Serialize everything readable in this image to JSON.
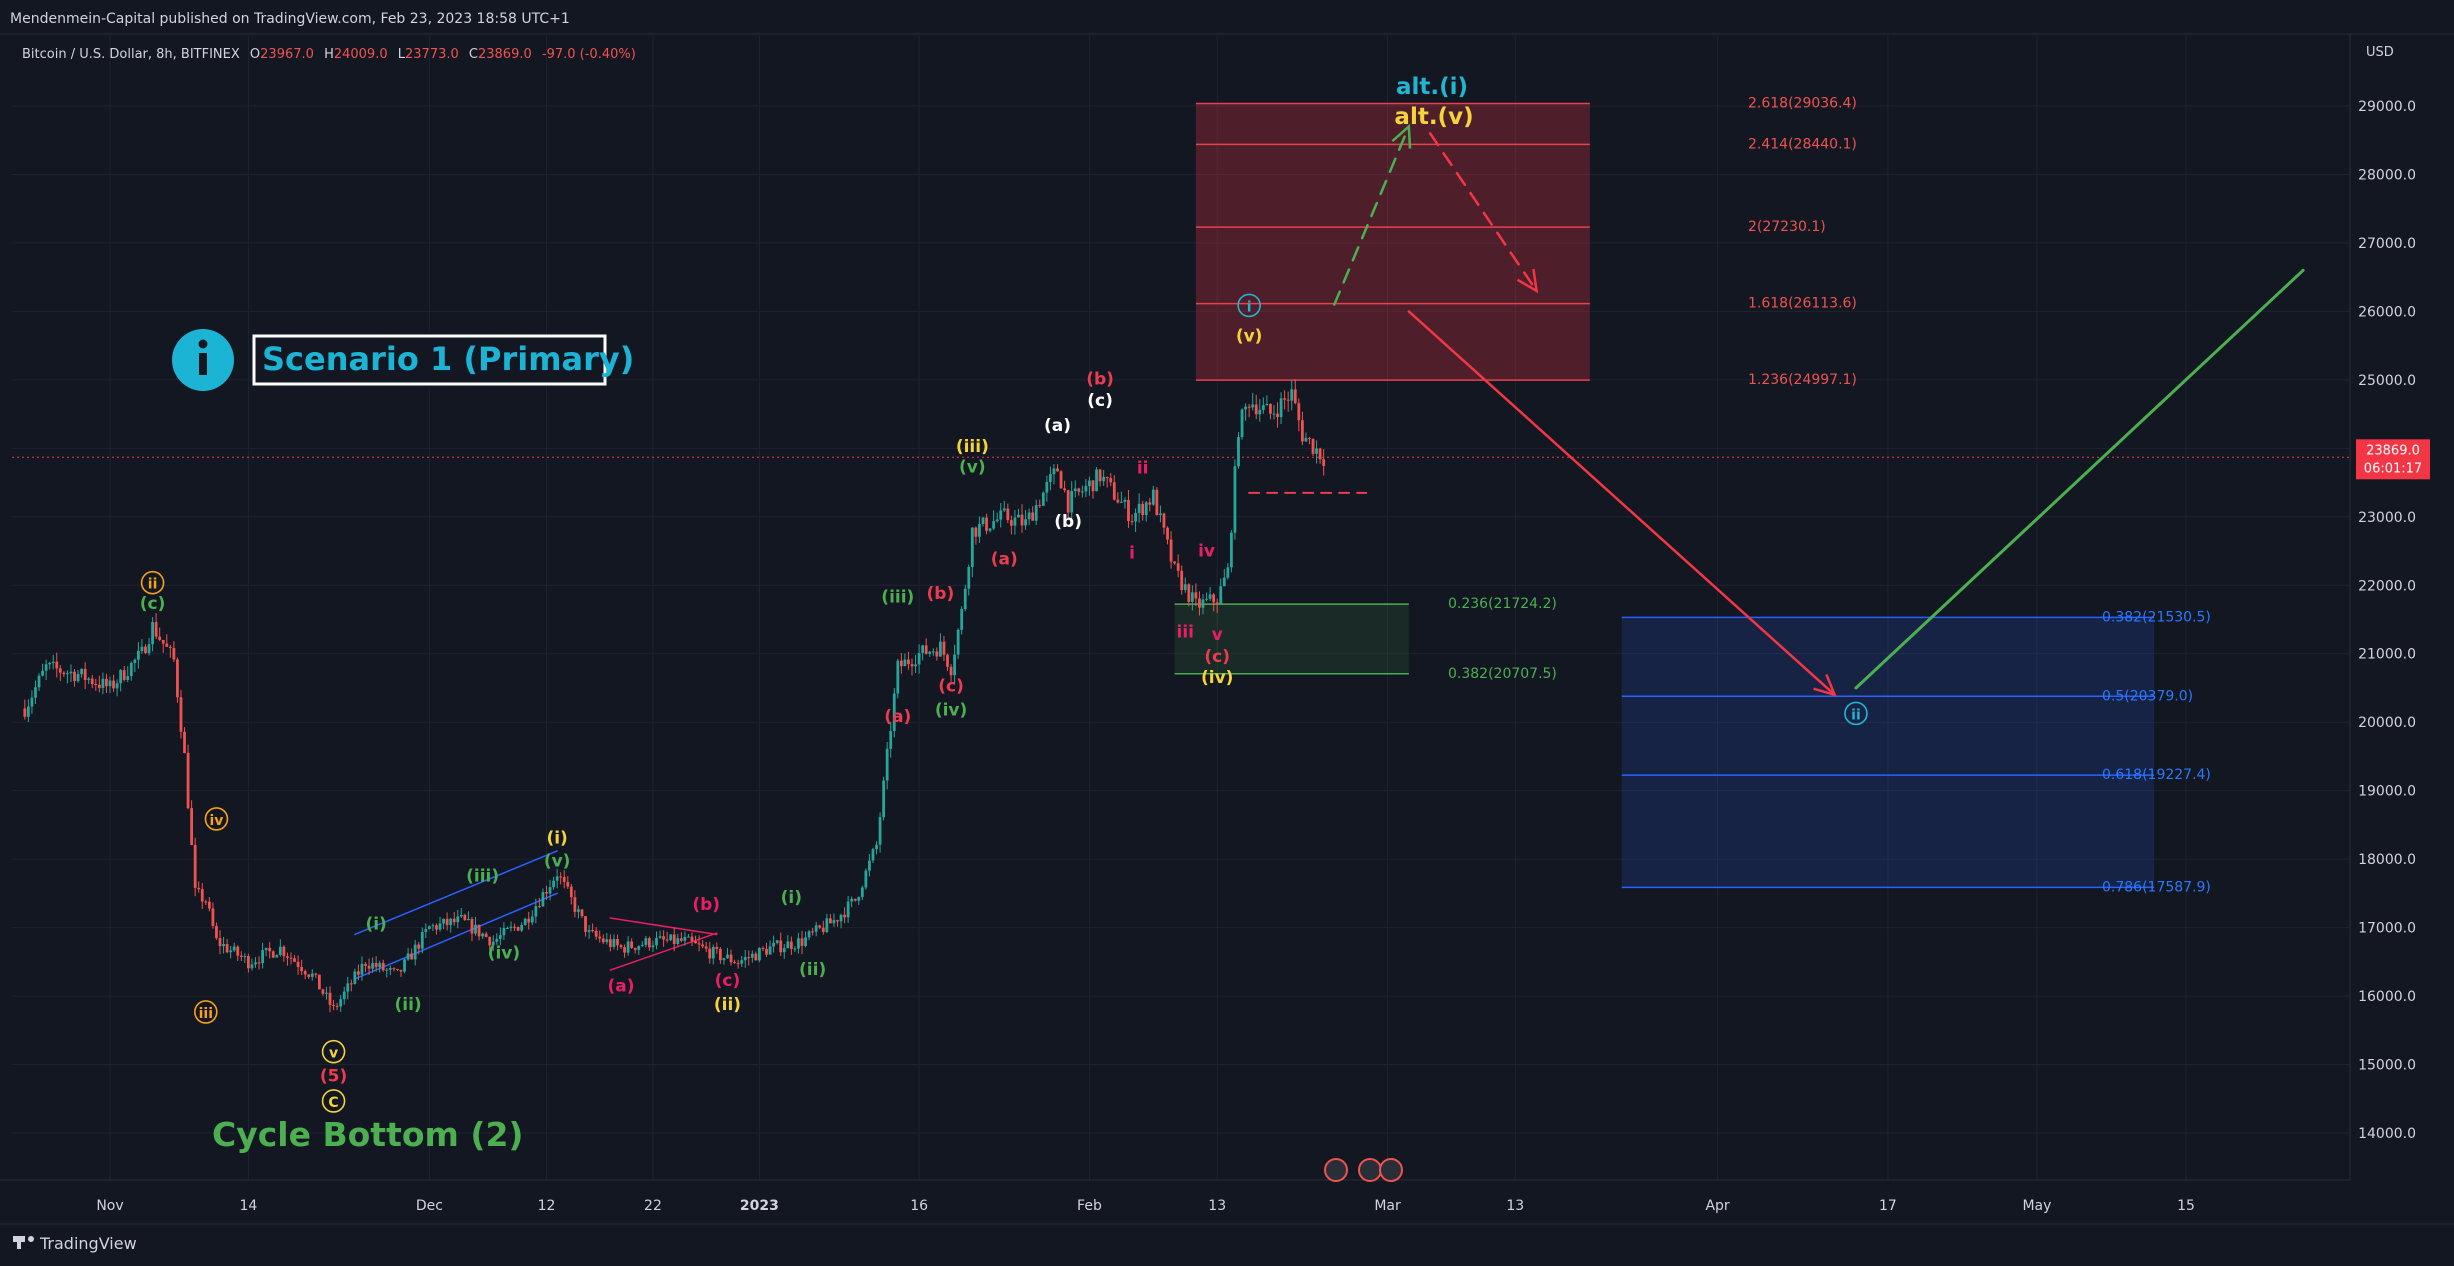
{
  "header": {
    "published": "Mendenmein-Capital published on TradingView.com, Feb 23, 2023 18:58 UTC+1"
  },
  "legend": {
    "symbol": "Bitcoin / U.S. Dollar, 8h, BITFINEX",
    "open_label": "O",
    "open": "23967.0",
    "high_label": "H",
    "high": "24009.0",
    "low_label": "L",
    "low": "23773.0",
    "close_label": "C",
    "close": "23869.0",
    "change": "-97.0 (-0.40%)"
  },
  "price_scale": {
    "currency": "USD",
    "last_price": "23869.0",
    "countdown": "06:01:17"
  },
  "footer": {
    "brand": "TradingView"
  },
  "colors": {
    "background": "#131722",
    "up": "#26a69a",
    "down": "#ef5350",
    "red_zone": "#e04050",
    "green_zone": "#4caf50",
    "blue_zone": "#2962ff",
    "teal_label": "#22b5d0"
  },
  "annotations": {
    "scenario": "Scenario 1 (Primary)",
    "cycle_bottom": "Cycle Bottom (2)",
    "alt_i": "alt.(i)",
    "alt_v": "alt.(v)"
  },
  "chart_data": {
    "type": "candlestick",
    "interval": "8h",
    "ylim": [
      13500,
      30300
    ],
    "y_ticks": [
      14000,
      15000,
      16000,
      17000,
      18000,
      19000,
      20000,
      21000,
      22000,
      23000,
      24000,
      25000,
      26000,
      27000,
      28000,
      29000
    ],
    "x_ticks": [
      {
        "label": "Nov",
        "date": "2022-11-01"
      },
      {
        "label": "14",
        "date": "2022-11-14"
      },
      {
        "label": "Dec",
        "date": "2022-12-01"
      },
      {
        "label": "12",
        "date": "2022-12-12"
      },
      {
        "label": "22",
        "date": "2022-12-22"
      },
      {
        "label": "2023",
        "date": "2023-01-01"
      },
      {
        "label": "16",
        "date": "2023-01-16"
      },
      {
        "label": "Feb",
        "date": "2023-02-01"
      },
      {
        "label": "13",
        "date": "2023-02-13"
      },
      {
        "label": "Mar",
        "date": "2023-03-01"
      },
      {
        "label": "13",
        "date": "2023-03-13"
      },
      {
        "label": "Apr",
        "date": "2023-04-01"
      },
      {
        "label": "17",
        "date": "2023-04-17"
      },
      {
        "label": "May",
        "date": "2023-05-01"
      },
      {
        "label": "15",
        "date": "2023-05-15"
      }
    ],
    "price_path": [
      [
        "2022-10-24",
        20200
      ],
      [
        "2022-10-26",
        20800
      ],
      [
        "2022-10-29",
        20700
      ],
      [
        "2022-11-01",
        20500
      ],
      [
        "2022-11-04",
        21000
      ],
      [
        "2022-11-05",
        21400
      ],
      [
        "2022-11-07",
        20900
      ],
      [
        "2022-11-08",
        19500
      ],
      [
        "2022-11-09",
        17500
      ],
      [
        "2022-11-10",
        17400
      ],
      [
        "2022-11-11",
        16800
      ],
      [
        "2022-11-14",
        16500
      ],
      [
        "2022-11-17",
        16700
      ],
      [
        "2022-11-20",
        16300
      ],
      [
        "2022-11-22",
        15800
      ],
      [
        "2022-11-25",
        16500
      ],
      [
        "2022-11-28",
        16300
      ],
      [
        "2022-12-01",
        17000
      ],
      [
        "2022-12-04",
        17100
      ],
      [
        "2022-12-07",
        16800
      ],
      [
        "2022-12-10",
        17100
      ],
      [
        "2022-12-13",
        17800
      ],
      [
        "2022-12-14",
        17500
      ],
      [
        "2022-12-16",
        16900
      ],
      [
        "2022-12-19",
        16700
      ],
      [
        "2022-12-22",
        16800
      ],
      [
        "2022-12-25",
        16800
      ],
      [
        "2022-12-28",
        16600
      ],
      [
        "2022-12-30",
        16500
      ],
      [
        "2023-01-02",
        16700
      ],
      [
        "2023-01-05",
        16800
      ],
      [
        "2023-01-08",
        17100
      ],
      [
        "2023-01-10",
        17400
      ],
      [
        "2023-01-12",
        18200
      ],
      [
        "2023-01-13",
        19500
      ],
      [
        "2023-01-14",
        20800
      ],
      [
        "2023-01-16",
        21000
      ],
      [
        "2023-01-18",
        21100
      ],
      [
        "2023-01-19",
        20800
      ],
      [
        "2023-01-20",
        21600
      ],
      [
        "2023-01-21",
        22800
      ],
      [
        "2023-01-24",
        23000
      ],
      [
        "2023-01-26",
        22900
      ],
      [
        "2023-01-29",
        23700
      ],
      [
        "2023-01-30",
        23200
      ],
      [
        "2023-02-02",
        23600
      ],
      [
        "2023-02-05",
        23000
      ],
      [
        "2023-02-07",
        23300
      ],
      [
        "2023-02-09",
        22200
      ],
      [
        "2023-02-11",
        21700
      ],
      [
        "2023-02-13",
        21800
      ],
      [
        "2023-02-14",
        22200
      ],
      [
        "2023-02-15",
        24300
      ],
      [
        "2023-02-16",
        24700
      ],
      [
        "2023-02-18",
        24500
      ],
      [
        "2023-02-20",
        24800
      ],
      [
        "2023-02-21",
        24200
      ],
      [
        "2023-02-23",
        23869
      ]
    ],
    "fib_red": [
      {
        "label": "1.236(24997.1)",
        "value": 24997.1
      },
      {
        "label": "1.618(26113.6)",
        "value": 26113.6
      },
      {
        "label": "2(27230.1)",
        "value": 27230.1
      },
      {
        "label": "2.414(28440.1)",
        "value": 28440.1
      },
      {
        "label": "2.618(29036.4)",
        "value": 29036.4
      }
    ],
    "fib_green": [
      {
        "label": "0.236(21724.2)",
        "value": 21724.2
      },
      {
        "label": "0.382(20707.5)",
        "value": 20707.5
      }
    ],
    "fib_blue": [
      {
        "label": "0.382(21530.5)",
        "value": 21530.5
      },
      {
        "label": "0.5(20379.0)",
        "value": 20379.0
      },
      {
        "label": "0.618(19227.4)",
        "value": 19227.4
      },
      {
        "label": "0.786(17587.9)",
        "value": 17587.9
      }
    ],
    "wave_labels": [
      {
        "t": "ii",
        "d": "2022-11-05",
        "y": 21950,
        "c": "#f7a21b",
        "circ": true
      },
      {
        "t": "(c)",
        "d": "2022-11-05",
        "y": 21650,
        "c": "#4caf50"
      },
      {
        "t": "iv",
        "d": "2022-11-11",
        "y": 18500,
        "c": "#f7a21b",
        "circ": true
      },
      {
        "t": "iii",
        "d": "2022-11-10",
        "y": 15680,
        "c": "#f7a21b",
        "circ": true
      },
      {
        "t": "v",
        "d": "2022-11-22",
        "y": 15100,
        "c": "#f5d33a",
        "circ": true
      },
      {
        "t": "(5)",
        "d": "2022-11-22",
        "y": 14750,
        "c": "#ef3b4f"
      },
      {
        "t": "C",
        "d": "2022-11-22",
        "y": 14380,
        "c": "#f5d33a",
        "circ": true
      },
      {
        "t": "(i)",
        "d": "2022-11-26",
        "y": 16970,
        "c": "#4caf50"
      },
      {
        "t": "(ii)",
        "d": "2022-11-29",
        "y": 15800,
        "c": "#4caf50"
      },
      {
        "t": "(iii)",
        "d": "2022-12-06",
        "y": 17670,
        "c": "#4caf50"
      },
      {
        "t": "(iv)",
        "d": "2022-12-08",
        "y": 16550,
        "c": "#4caf50"
      },
      {
        "t": "(i)",
        "d": "2022-12-13",
        "y": 18230,
        "c": "#f5d33a"
      },
      {
        "t": "(v)",
        "d": "2022-12-13",
        "y": 17890,
        "c": "#4caf50"
      },
      {
        "t": "(a)",
        "d": "2022-12-19",
        "y": 16070,
        "c": "#e91e63"
      },
      {
        "t": "(b)",
        "d": "2022-12-27",
        "y": 17260,
        "c": "#e91e63"
      },
      {
        "t": "(c)",
        "d": "2022-12-29",
        "y": 16150,
        "c": "#e91e63"
      },
      {
        "t": "(ii)",
        "d": "2022-12-29",
        "y": 15800,
        "c": "#f5d33a"
      },
      {
        "t": "(i)",
        "d": "2023-01-04",
        "y": 17360,
        "c": "#4caf50"
      },
      {
        "t": "(ii)",
        "d": "2023-01-06",
        "y": 16310,
        "c": "#4caf50"
      },
      {
        "t": "(a)",
        "d": "2023-01-14",
        "y": 20000,
        "c": "#ef3b4f"
      },
      {
        "t": "(iii)",
        "d": "2023-01-14",
        "y": 21750,
        "c": "#4caf50"
      },
      {
        "t": "(b)",
        "d": "2023-01-18",
        "y": 21800,
        "c": "#ef3b4f"
      },
      {
        "t": "(c)",
        "d": "2023-01-19",
        "y": 20450,
        "c": "#ef3b4f"
      },
      {
        "t": "(iv)",
        "d": "2023-01-19",
        "y": 20100,
        "c": "#4caf50"
      },
      {
        "t": "(iii)",
        "d": "2023-01-21",
        "y": 23950,
        "c": "#f5d33a"
      },
      {
        "t": "(v)",
        "d": "2023-01-21",
        "y": 23650,
        "c": "#4caf50"
      },
      {
        "t": "(a)",
        "d": "2023-01-24",
        "y": 22300,
        "c": "#ef3b4f"
      },
      {
        "t": "(a)",
        "d": "2023-01-29",
        "y": 24250,
        "c": "#ffffff"
      },
      {
        "t": "(b)",
        "d": "2023-01-30",
        "y": 22850,
        "c": "#ffffff"
      },
      {
        "t": "(b)",
        "d": "2023-02-02",
        "y": 24930,
        "c": "#ef3b4f"
      },
      {
        "t": "(c)",
        "d": "2023-02-02",
        "y": 24620,
        "c": "#ffffff"
      },
      {
        "t": "ii",
        "d": "2023-02-06",
        "y": 23630,
        "c": "#e91e63"
      },
      {
        "t": "i",
        "d": "2023-02-05",
        "y": 22390,
        "c": "#e91e63"
      },
      {
        "t": "iv",
        "d": "2023-02-12",
        "y": 22420,
        "c": "#e91e63"
      },
      {
        "t": "iii",
        "d": "2023-02-10",
        "y": 21240,
        "c": "#e91e63"
      },
      {
        "t": "v",
        "d": "2023-02-13",
        "y": 21200,
        "c": "#e91e63"
      },
      {
        "t": "(c)",
        "d": "2023-02-13",
        "y": 20880,
        "c": "#ef3b4f"
      },
      {
        "t": "(iv)",
        "d": "2023-02-13",
        "y": 20570,
        "c": "#f5d33a"
      },
      {
        "t": "i",
        "d": "2023-02-16",
        "y": 26000,
        "c": "#22b5d0",
        "circ": true
      },
      {
        "t": "(v)",
        "d": "2023-02-16",
        "y": 25560,
        "c": "#f5d33a"
      },
      {
        "t": "ii",
        "d": "2023-04-14",
        "y": 20040,
        "c": "#22b5d0",
        "circ": true
      }
    ],
    "red_arrow": [
      [
        "2023-03-03",
        26000
      ],
      [
        "2023-04-12",
        20400
      ]
    ],
    "green_line": [
      [
        "2023-04-14",
        20500
      ],
      [
        "2023-05-26",
        26600
      ]
    ],
    "alt_path_up": [
      [
        "2023-02-24",
        26100
      ],
      [
        "2023-03-03",
        28700
      ]
    ],
    "alt_path_down": [
      [
        "2023-03-05",
        28600
      ],
      [
        "2023-03-15",
        26300
      ]
    ],
    "dashed_support": [
      [
        "2023-02-16",
        23350
      ],
      [
        "2023-02-27",
        23350
      ]
    ]
  }
}
